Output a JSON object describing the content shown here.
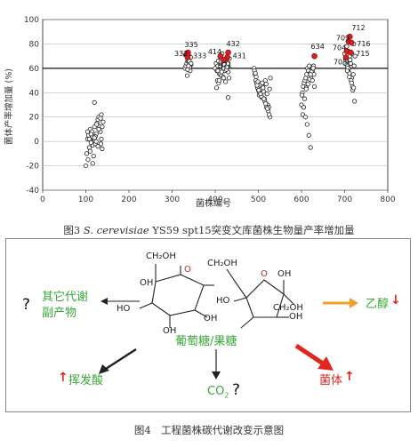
{
  "chart_data": {
    "type": "scatter",
    "title": "",
    "xlabel": "菌株编号",
    "ylabel": "菌体产率增加量 (%)",
    "xlim": [
      0,
      800
    ],
    "ylim": [
      -40,
      100
    ],
    "xticks": [
      "0",
      "100",
      "200",
      "300",
      "400",
      "500",
      "600",
      "700",
      "800"
    ],
    "yticks": [
      "-40",
      "-20",
      "0",
      "20",
      "40",
      "60",
      "80",
      "100"
    ],
    "grid": "horizontal",
    "reference_line": 60,
    "series": [
      {
        "values_x": [
          100,
          102,
          104,
          106,
          108,
          110,
          112,
          114,
          116,
          118,
          120,
          122,
          124,
          126,
          128,
          130,
          132,
          134,
          136,
          138,
          140,
          105,
          110,
          115,
          120,
          125,
          130,
          135,
          112,
          118,
          124,
          108,
          128,
          134,
          138,
          116,
          104,
          122,
          130,
          136,
          112,
          120
        ],
        "values_y": [
          -20,
          -10,
          2,
          5,
          -5,
          10,
          0,
          8,
          -3,
          3,
          12,
          -2,
          6,
          15,
          18,
          20,
          12,
          8,
          2,
          -6,
          16,
          -15,
          -8,
          4,
          32,
          14,
          10,
          -2,
          6,
          -12,
          0,
          2,
          -4,
          19,
          12,
          -18,
          8,
          4,
          10,
          22,
          -1,
          3
        ]
      },
      {
        "values_x": [
          330,
          332,
          334,
          336,
          338,
          340,
          342,
          344,
          333,
          337,
          341,
          335,
          339,
          343,
          331,
          336,
          340,
          344,
          338,
          334
        ],
        "values_y": [
          60,
          62,
          64,
          66,
          68,
          70,
          58,
          63,
          72,
          67,
          61,
          54,
          65,
          69,
          71,
          59,
          66,
          64,
          62,
          70
        ]
      },
      {
        "values_x": [
          400,
          402,
          404,
          406,
          408,
          410,
          412,
          414,
          416,
          418,
          420,
          422,
          424,
          426,
          428,
          430,
          432,
          405,
          411,
          417,
          423,
          429,
          408,
          414,
          420,
          426,
          403,
          409,
          415,
          421,
          427,
          433,
          406,
          412,
          418,
          424,
          430,
          407,
          413,
          419
        ],
        "values_y": [
          60,
          64,
          58,
          62,
          66,
          55,
          70,
          68,
          72,
          65,
          60,
          58,
          63,
          67,
          61,
          57,
          52,
          50,
          56,
          62,
          66,
          64,
          48,
          54,
          60,
          59,
          44,
          50,
          57,
          63,
          61,
          68,
          58,
          62,
          53,
          49,
          36,
          66,
          65,
          52
        ]
      },
      {
        "values_x": [
          490,
          492,
          494,
          496,
          498,
          500,
          502,
          504,
          506,
          508,
          510,
          512,
          514,
          516,
          518,
          520,
          522,
          524,
          526,
          528,
          491,
          495,
          499,
          503,
          507,
          511,
          515,
          519,
          523,
          527,
          493,
          497,
          501,
          505,
          509,
          513,
          517,
          521,
          525
        ],
        "values_y": [
          60,
          55,
          50,
          48,
          44,
          42,
          38,
          46,
          40,
          36,
          45,
          41,
          35,
          50,
          47,
          39,
          30,
          28,
          43,
          52,
          58,
          53,
          49,
          40,
          37,
          44,
          33,
          28,
          25,
          20,
          56,
          46,
          42,
          39,
          48,
          35,
          31,
          27,
          22
        ]
      },
      {
        "values_x": [
          600,
          602,
          604,
          606,
          608,
          610,
          612,
          614,
          616,
          618,
          620,
          622,
          624,
          626,
          628,
          630,
          603,
          607,
          611,
          615,
          619,
          623,
          627,
          605,
          609,
          613,
          617,
          621,
          625,
          629,
          601,
          611,
          621
        ],
        "values_y": [
          30,
          40,
          45,
          48,
          50,
          52,
          55,
          60,
          58,
          62,
          56,
          52,
          50,
          58,
          62,
          45,
          22,
          35,
          44,
          47,
          51,
          57,
          60,
          28,
          20,
          14,
          5,
          -5,
          50,
          55,
          38,
          43,
          55
        ]
      },
      {
        "values_x": [
          700,
          702,
          704,
          706,
          708,
          710,
          712,
          714,
          716,
          718,
          720,
          722,
          724,
          703,
          707,
          711,
          715,
          719,
          723,
          705,
          709,
          713,
          717,
          721,
          701,
          706,
          711,
          716,
          721
        ],
        "values_y": [
          72,
          68,
          65,
          62,
          58,
          60,
          70,
          64,
          52,
          45,
          55,
          62,
          70,
          66,
          60,
          56,
          50,
          42,
          33,
          78,
          74,
          67,
          72,
          80,
          64,
          58,
          53,
          48,
          44
        ]
      }
    ],
    "highlighted_strains": [
      {
        "label": "335",
        "x": 337,
        "y": 73
      },
      {
        "label": "332",
        "x": 334,
        "y": 71
      },
      {
        "label": "333",
        "x": 336,
        "y": 69
      },
      {
        "label": "414",
        "x": 412,
        "y": 70
      },
      {
        "label": "432",
        "x": 430,
        "y": 73
      },
      {
        "label": "431",
        "x": 428,
        "y": 69
      },
      {
        "label": "421",
        "x": 420,
        "y": 67
      },
      {
        "label": "634",
        "x": 630,
        "y": 70
      },
      {
        "label": "712",
        "x": 712,
        "y": 86
      },
      {
        "label": "709",
        "x": 709,
        "y": 82
      },
      {
        "label": "716",
        "x": 716,
        "y": 81
      },
      {
        "label": "704",
        "x": 705,
        "y": 74
      },
      {
        "label": "715",
        "x": 714,
        "y": 73
      },
      {
        "label": "703",
        "x": 703,
        "y": 69
      }
    ]
  },
  "figure3": {
    "caption_prefix": "图3",
    "caption_species": "S. cerevisiae",
    "caption_rest": " YS59 spt15突变文库菌株生物量产率增加量"
  },
  "figure4": {
    "caption": "图4　工程菌株碳代谢改变示意图",
    "center_label": "葡萄糖/果糖",
    "byproduct_label_line1": "其它代谢",
    "byproduct_label_line2": "副产物",
    "ethanol_label": "乙醇",
    "volatile_acid_label": "挥发酸",
    "co2_label": "CO",
    "co2_subscript": "2",
    "biomass_label": "菌体",
    "question_mark": "?",
    "up_arrow": "↑",
    "down_arrow": "↓",
    "glucose_labels": [
      "CH₂OH",
      "O",
      "OH",
      "HO",
      "OH",
      "OH"
    ],
    "fructose_labels": [
      "CH₂OH",
      "O",
      "OH",
      "HO",
      "OH",
      "CH₂OH"
    ],
    "colors": {
      "green": "#3aa63a",
      "red": "#e0261f",
      "orange": "#f0a02a",
      "dark": "#222222"
    }
  }
}
